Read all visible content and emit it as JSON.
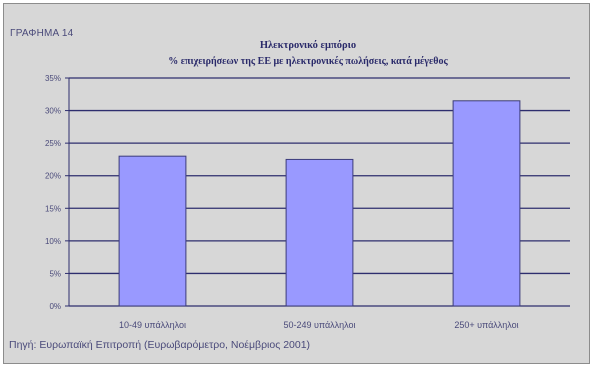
{
  "figure_label": "ΓΡΑΦΗΜΑ 14",
  "source": "Πηγή: Ευρωπαϊκή Επιτροπή (Ευρωβαρόμετρο, Νοέμβριος 2001)",
  "colors": {
    "bar_fill": "#9999ff",
    "bar_stroke": "#3c3c78",
    "gridline": "#2e2e6e",
    "plot_background": "#d7d7d7",
    "text": "#4a4a7a"
  },
  "chart_data": {
    "type": "bar",
    "title": "Ηλεκτρονικό εμπόριο",
    "subtitle": "% επιχειρήσεων της ΕΕ με ηλεκτρονικές πωλήσεις, κατά μέγεθος",
    "xlabel": "",
    "ylabel": "",
    "categories": [
      "10-49 υπάλληλοι",
      "50-249 υπάλληλοι",
      "250+ υπάλληλοι"
    ],
    "values": [
      23,
      22.5,
      31.5
    ],
    "ylim": [
      0,
      35
    ],
    "yticks": [
      0,
      5,
      10,
      15,
      20,
      25,
      30,
      35
    ],
    "ytick_labels": [
      "0%",
      "5%",
      "10%",
      "15%",
      "20%",
      "25%",
      "30%",
      "35%"
    ],
    "grid": true,
    "legend": "none"
  }
}
